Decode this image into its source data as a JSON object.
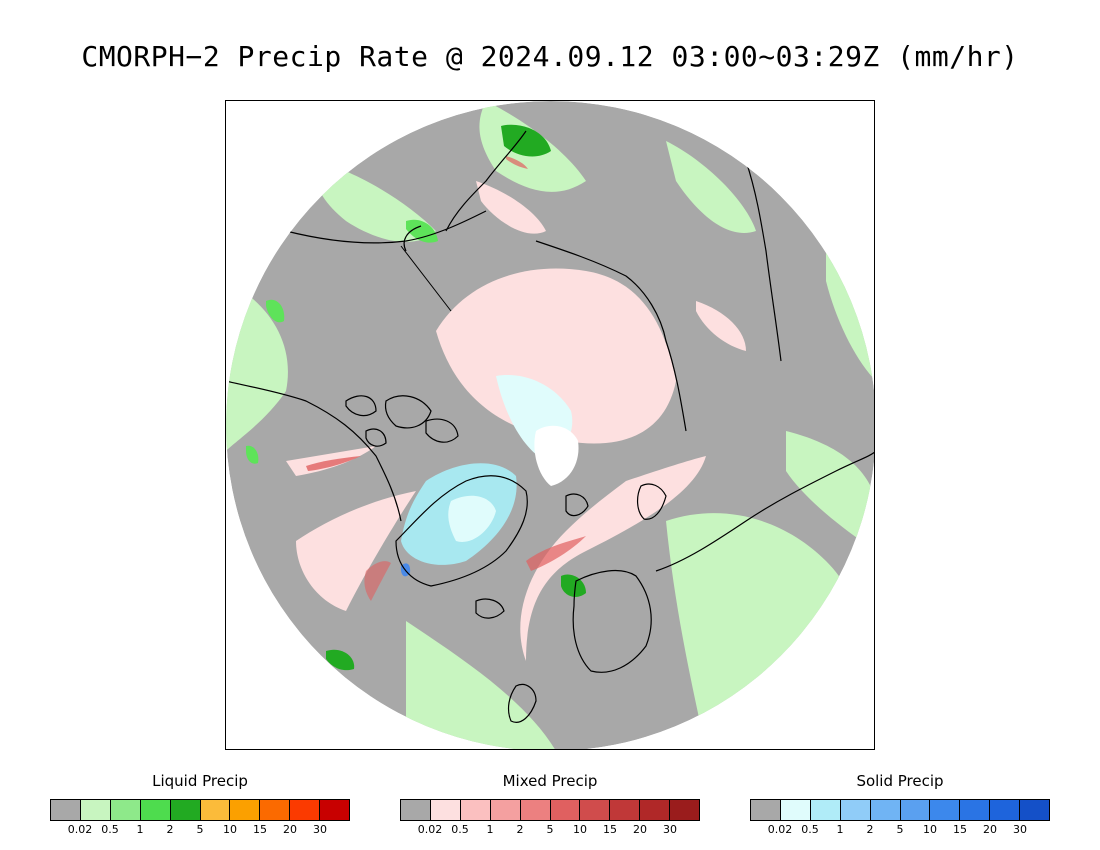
{
  "title": "CMORPH−2 Precip Rate @ 2024.09.12 03:00~03:29Z (mm/hr)",
  "map": {
    "projection": "north polar stereographic",
    "colors": {
      "no_precip": "#a8a8a8",
      "light_liquid": "#c8f5c0",
      "moderate_liquid": "#5ee35a",
      "heavy_liquid": "#22aa22",
      "light_mixed": "#fde0e0",
      "moderate_mixed": "#f4a5a5",
      "heavy_mixed": "#e06060",
      "light_solid": "#e0fcfc",
      "moderate_solid": "#a8e8f0",
      "solid_blue": "#4a8ae8",
      "pole_white": "#ffffff",
      "coastline": "#000000"
    }
  },
  "legends": [
    {
      "title": "Liquid Precip",
      "colors": [
        "#a8a8a8",
        "#c8f5c0",
        "#8ee98a",
        "#4edc4e",
        "#22aa22",
        "#fbbb3a",
        "#fba000",
        "#fb6a00",
        "#fb3a00",
        "#c80000"
      ],
      "ticks": [
        "0.02",
        "0.5",
        "1",
        "2",
        "5",
        "10",
        "15",
        "20",
        "30"
      ]
    },
    {
      "title": "Mixed Precip",
      "colors": [
        "#a8a8a8",
        "#fde0e0",
        "#fbc0c0",
        "#f4a0a0",
        "#ec8080",
        "#e06060",
        "#d04c4c",
        "#c03838",
        "#b02828",
        "#9a1c1c"
      ],
      "ticks": [
        "0.02",
        "0.5",
        "1",
        "2",
        "5",
        "10",
        "15",
        "20",
        "30"
      ]
    },
    {
      "title": "Solid Precip",
      "colors": [
        "#a8a8a8",
        "#e0fcfc",
        "#b0ecf8",
        "#90ccf8",
        "#70b4f4",
        "#5aa0f0",
        "#3c88ec",
        "#2a74e4",
        "#1e64dc",
        "#1450c8"
      ],
      "ticks": [
        "0.02",
        "0.5",
        "1",
        "2",
        "5",
        "10",
        "15",
        "20",
        "30"
      ]
    }
  ]
}
